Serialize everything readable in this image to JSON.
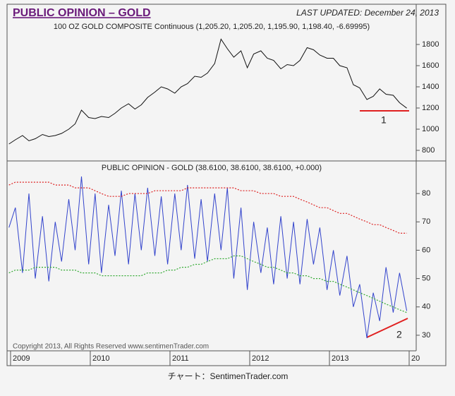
{
  "header": {
    "title": "PUBLIC OPINION – GOLD",
    "updated": "LAST UPDATED:  December 24, 2013"
  },
  "footer": {
    "copyright": "Copyright 2013, All Rights Reserved  www.sentimenTrader.com",
    "caption": "チャート：SentimenTrader.com"
  },
  "chart_data": [
    {
      "type": "line",
      "title": "100 OZ GOLD COMPOSITE Continuous (1,205.20, 1,205.20, 1,195.90, 1,198.40, -6.69995)",
      "x": [
        2008.98,
        2009.06,
        2009.15,
        2009.23,
        2009.31,
        2009.4,
        2009.48,
        2009.56,
        2009.64,
        2009.73,
        2009.81,
        2009.89,
        2009.98,
        2010.06,
        2010.14,
        2010.23,
        2010.31,
        2010.39,
        2010.48,
        2010.56,
        2010.64,
        2010.72,
        2010.81,
        2010.89,
        2010.97,
        2011.06,
        2011.14,
        2011.22,
        2011.31,
        2011.39,
        2011.47,
        2011.56,
        2011.64,
        2011.72,
        2011.8,
        2011.89,
        2011.97,
        2012.05,
        2012.14,
        2012.22,
        2012.3,
        2012.39,
        2012.47,
        2012.55,
        2012.63,
        2012.72,
        2012.8,
        2012.88,
        2012.97,
        2013.05,
        2013.13,
        2013.22,
        2013.3,
        2013.38,
        2013.47,
        2013.55,
        2013.63,
        2013.71,
        2013.8,
        2013.88,
        2013.97
      ],
      "series": [
        {
          "color": "#111111",
          "values": [
            860,
            900,
            940,
            890,
            910,
            950,
            930,
            940,
            960,
            1000,
            1050,
            1180,
            1110,
            1100,
            1120,
            1110,
            1150,
            1200,
            1240,
            1190,
            1230,
            1300,
            1350,
            1400,
            1380,
            1340,
            1400,
            1430,
            1500,
            1490,
            1530,
            1620,
            1850,
            1760,
            1680,
            1740,
            1580,
            1710,
            1740,
            1670,
            1650,
            1570,
            1610,
            1600,
            1650,
            1770,
            1750,
            1700,
            1670,
            1670,
            1600,
            1580,
            1420,
            1390,
            1280,
            1310,
            1380,
            1330,
            1320,
            1250,
            1198.4
          ]
        }
      ],
      "xlim": [
        2008.956,
        2014.0
      ],
      "ylim": [
        700,
        2020
      ],
      "yticks": [
        800,
        1000,
        1200,
        1400,
        1600,
        1800
      ],
      "annotation": "1"
    },
    {
      "type": "line",
      "title": "PUBLIC OPINION - GOLD (38.6100, 38.6100, 38.6100, +0.000)",
      "x": [
        2008.98,
        2009.06,
        2009.15,
        2009.23,
        2009.31,
        2009.4,
        2009.48,
        2009.56,
        2009.64,
        2009.73,
        2009.81,
        2009.89,
        2009.98,
        2010.06,
        2010.14,
        2010.23,
        2010.31,
        2010.39,
        2010.48,
        2010.56,
        2010.64,
        2010.72,
        2010.81,
        2010.89,
        2010.97,
        2011.06,
        2011.14,
        2011.22,
        2011.31,
        2011.39,
        2011.47,
        2011.56,
        2011.64,
        2011.72,
        2011.8,
        2011.89,
        2011.97,
        2012.05,
        2012.14,
        2012.22,
        2012.3,
        2012.39,
        2012.47,
        2012.55,
        2012.63,
        2012.72,
        2012.8,
        2012.88,
        2012.97,
        2013.05,
        2013.13,
        2013.22,
        2013.3,
        2013.38,
        2013.47,
        2013.55,
        2013.63,
        2013.71,
        2013.8,
        2013.88,
        2013.97
      ],
      "series": [
        {
          "color": "#3344cc",
          "values": [
            68,
            75,
            52,
            80,
            50,
            72,
            49,
            70,
            56,
            78,
            60,
            86,
            55,
            80,
            52,
            76,
            58,
            81,
            55,
            80,
            60,
            82,
            58,
            79,
            55,
            80,
            60,
            83,
            57,
            78,
            56,
            80,
            60,
            82,
            50,
            75,
            46,
            70,
            52,
            68,
            48,
            72,
            50,
            70,
            48,
            71,
            55,
            68,
            46,
            60,
            44,
            58,
            40,
            48,
            29,
            45,
            35,
            54,
            38,
            52,
            38.61
          ]
        },
        {
          "color": "#dd2222",
          "dashed": true,
          "values": [
            83,
            84,
            84,
            84,
            84,
            84,
            84,
            83,
            83,
            83,
            82,
            82,
            82,
            81,
            80,
            79,
            79,
            79,
            80,
            80,
            80,
            80,
            81,
            81,
            81,
            81,
            81,
            82,
            82,
            82,
            82,
            82,
            82,
            82,
            82,
            81,
            81,
            81,
            80,
            80,
            80,
            79,
            79,
            79,
            78,
            77,
            76,
            75,
            75,
            74,
            73,
            73,
            72,
            71,
            70,
            69,
            69,
            68,
            67,
            66,
            66
          ]
        },
        {
          "color": "#33aa33",
          "dashed": true,
          "values": [
            52,
            53,
            53,
            53,
            54,
            54,
            54,
            54,
            53,
            53,
            53,
            52,
            52,
            52,
            51,
            51,
            51,
            51,
            51,
            51,
            51,
            52,
            52,
            52,
            53,
            53,
            54,
            54,
            55,
            55,
            56,
            57,
            57,
            57,
            58,
            58,
            57,
            56,
            55,
            54,
            54,
            53,
            52,
            52,
            51,
            51,
            50,
            50,
            49,
            49,
            48,
            47,
            46,
            45,
            44,
            43,
            42,
            41,
            40,
            39,
            38
          ]
        }
      ],
      "xlim": [
        2008.956,
        2014.0
      ],
      "ylim": [
        25,
        91
      ],
      "yticks": [
        30,
        40,
        50,
        60,
        70,
        80
      ],
      "xticks": [
        2009,
        2010,
        2011,
        2012,
        2013,
        {
          "value": 2014,
          "label": "20"
        }
      ],
      "annotation": "2"
    }
  ]
}
